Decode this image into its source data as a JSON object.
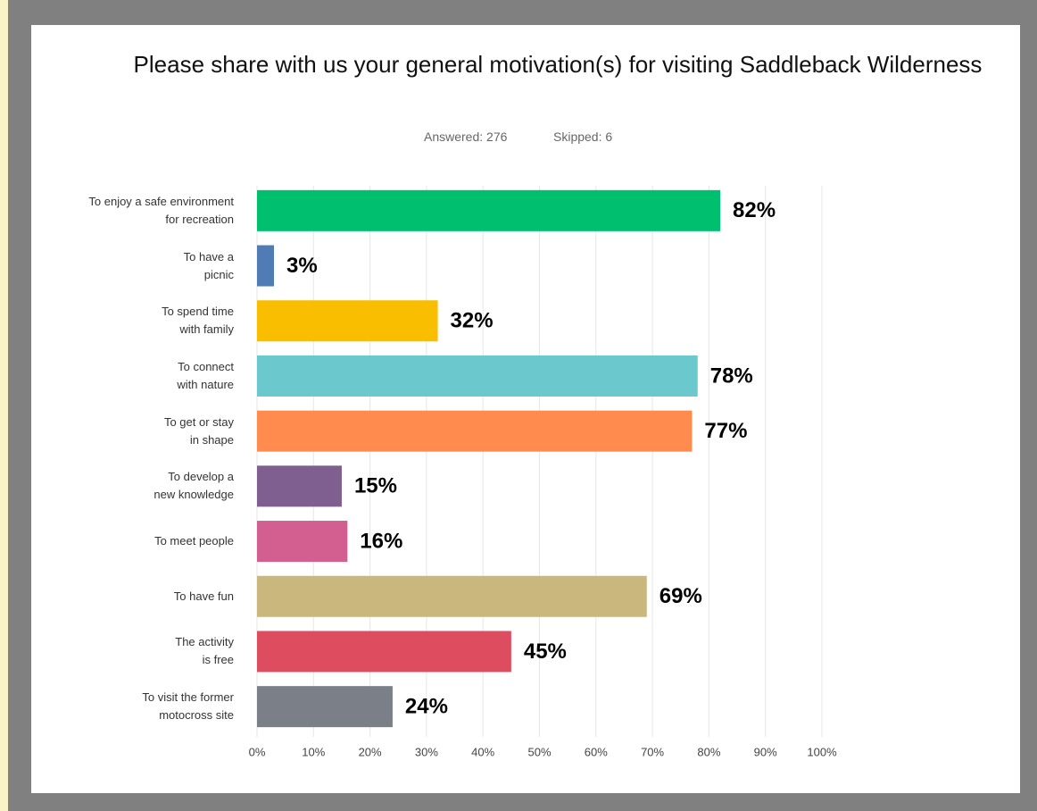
{
  "chart_data": {
    "type": "bar",
    "orientation": "horizontal",
    "title": "Please share with us your general motivation(s) for visiting Saddleback Wilderness",
    "answered": "Answered: 276",
    "skipped": "Skipped: 6",
    "categories": [
      "To enjoy a safe environment\nfor recreation",
      "To have a\npicnic",
      "To spend time\nwith family",
      "To connect\nwith nature",
      "To get or stay\nin shape",
      "To develop a\nnew knowledge",
      "To meet people",
      "To have fun",
      "The activity\nis free",
      "To  visit the former\nmotocross site"
    ],
    "values": [
      82,
      3,
      32,
      78,
      77,
      15,
      16,
      69,
      45,
      24
    ],
    "value_labels": [
      "82%",
      "3%",
      "32%",
      "78%",
      "77%",
      "15%",
      "16%",
      "69%",
      "45%",
      "24%"
    ],
    "colors": [
      "#00bf6f",
      "#507cb6",
      "#f9be00",
      "#6bc8cd",
      "#ff8b4f",
      "#7f5f8f",
      "#d25f90",
      "#c9b77d",
      "#dd4d5f",
      "#7a7f88"
    ],
    "xlim": [
      0,
      100
    ],
    "xticks": [
      {
        "value": 0,
        "label": "0%"
      },
      {
        "value": 10,
        "label": "10%"
      },
      {
        "value": 20,
        "label": "20%"
      },
      {
        "value": 30,
        "label": "30%"
      },
      {
        "value": 40,
        "label": "40%"
      },
      {
        "value": 50,
        "label": "50%"
      },
      {
        "value": 60,
        "label": "60%"
      },
      {
        "value": 70,
        "label": "70%"
      },
      {
        "value": 80,
        "label": "80%"
      },
      {
        "value": 90,
        "label": "90%"
      },
      {
        "value": 100,
        "label": "100%"
      }
    ],
    "grid": true
  }
}
